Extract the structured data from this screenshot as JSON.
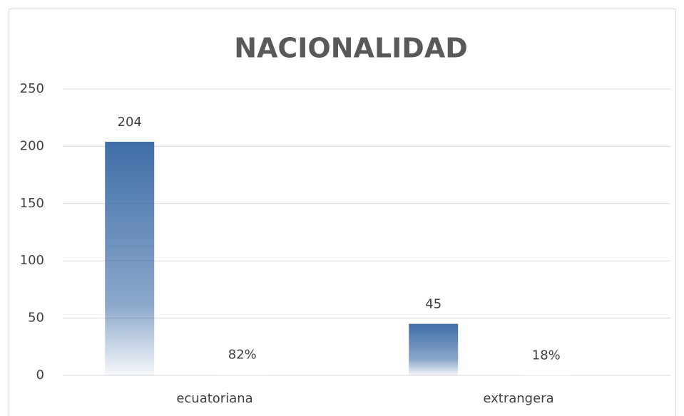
{
  "chart_data": {
    "type": "bar",
    "title": "NACIONALIDAD",
    "categories": [
      "ecuatoriana",
      "extrangera"
    ],
    "series": [
      {
        "color": "#3f6ea8",
        "values": [
          204,
          45
        ]
      },
      {
        "color": "#ffffff",
        "values": [
          0.82,
          0.18
        ],
        "value_labels": [
          "82%",
          "18%"
        ]
      }
    ],
    "ylim": [
      0,
      250
    ],
    "yticks": [
      0,
      50,
      100,
      150,
      200,
      250
    ],
    "grid": true
  }
}
